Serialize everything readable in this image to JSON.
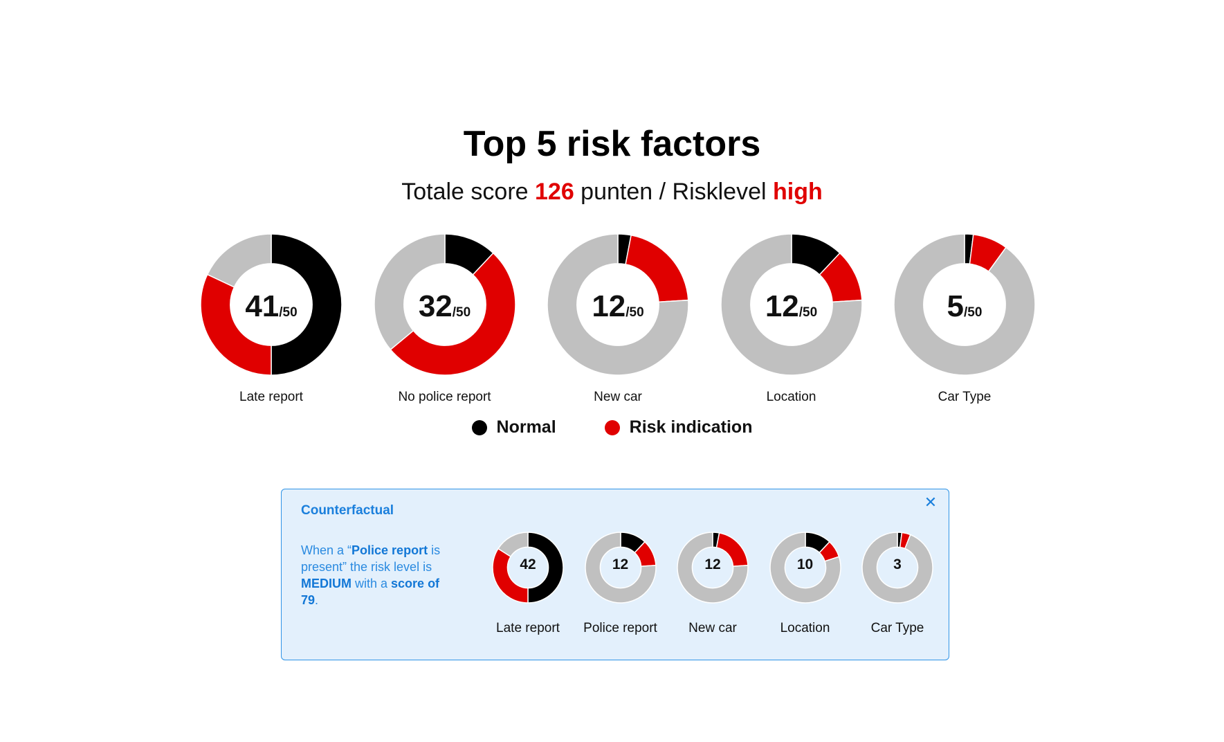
{
  "colors": {
    "normal": "#000000",
    "risk": "#e00000",
    "remainder": "#c0c0c0",
    "accent_blue": "#1a7fdc",
    "panel_bg": "#e3f0fc"
  },
  "header": {
    "title": "Top 5 risk factors",
    "subtitle_prefix": "Totale score ",
    "total_score": "126",
    "subtitle_middle": " punten / Risklevel ",
    "risk_level": "high"
  },
  "legend": {
    "normal_label": "Normal",
    "risk_label": "Risk indication"
  },
  "counterfactual": {
    "title": "Counterfactual",
    "close_icon": "close-icon",
    "text_1": "When a “",
    "text_bold_1": "Police report",
    "text_2": " is present” the risk level is ",
    "text_bold_2": "MEDIUM",
    "text_3": " with a ",
    "text_bold_3": "score of 79",
    "text_4": "."
  },
  "chart_data": [
    {
      "type": "donut",
      "title": "Top 5 risk factors",
      "max_per_factor": 50,
      "denominator_label": "/50",
      "series_names": [
        "Normal",
        "Risk indication"
      ],
      "factors": [
        {
          "label": "Late report",
          "score": 41,
          "normal": 25,
          "risk": 16
        },
        {
          "label": "No police report",
          "score": 32,
          "normal": 6,
          "risk": 26
        },
        {
          "label": "New car",
          "score": 12,
          "normal": 1.5,
          "risk": 10.5
        },
        {
          "label": "Location",
          "score": 12,
          "normal": 6,
          "risk": 6
        },
        {
          "label": "Car Type",
          "score": 5,
          "normal": 1,
          "risk": 4
        }
      ]
    },
    {
      "type": "donut",
      "title": "Counterfactual",
      "max_per_factor": 50,
      "series_names": [
        "Normal",
        "Risk indication"
      ],
      "factors": [
        {
          "label": "Late report",
          "score": 42,
          "normal": 25,
          "risk": 17
        },
        {
          "label": "Police report",
          "score": 12,
          "normal": 6,
          "risk": 6
        },
        {
          "label": "New car",
          "score": 12,
          "normal": 1.5,
          "risk": 10.5
        },
        {
          "label": "Location",
          "score": 10,
          "normal": 6,
          "risk": 4
        },
        {
          "label": "Car Type",
          "score": 3,
          "normal": 1,
          "risk": 2
        }
      ]
    }
  ]
}
